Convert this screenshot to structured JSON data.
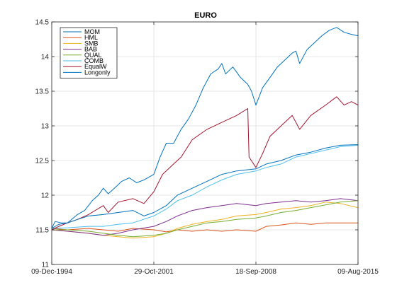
{
  "chart_data": {
    "type": "line",
    "title": "EURO",
    "xlabel": "",
    "ylabel": "",
    "x_start": "09-Dec-1994",
    "x_end": "09-Aug-2015",
    "xlim": [
      "09-Dec-1994",
      "09-Aug-2015"
    ],
    "ylim": [
      11,
      14.5
    ],
    "x_ticks": [
      "09-Dec-1994",
      "29-Oct-2001",
      "18-Sep-2008",
      "09-Aug-2015"
    ],
    "y_ticks": [
      11,
      11.5,
      12,
      12.5,
      13,
      13.5,
      14,
      14.5
    ],
    "grid": true,
    "legend_position": "top-left",
    "series": [
      {
        "name": "MOM",
        "color": "#0072bd",
        "points": [
          [
            "1994-12-09",
            11.52
          ],
          [
            "1995-03-01",
            11.62
          ],
          [
            "1995-08-01",
            11.6
          ],
          [
            "1996-01-01",
            11.6
          ],
          [
            "1996-09-01",
            11.72
          ],
          [
            "1997-03-01",
            11.78
          ],
          [
            "1997-09-01",
            11.92
          ],
          [
            "1998-02-01",
            12.0
          ],
          [
            "1998-06-01",
            12.1
          ],
          [
            "1998-10-01",
            12.02
          ],
          [
            "1999-03-01",
            12.1
          ],
          [
            "1999-09-01",
            12.2
          ],
          [
            "2000-03-01",
            12.25
          ],
          [
            "2000-09-01",
            12.18
          ],
          [
            "2001-03-01",
            12.22
          ],
          [
            "2001-10-29",
            12.3
          ],
          [
            "2002-04-01",
            12.55
          ],
          [
            "2002-09-01",
            12.75
          ],
          [
            "2003-03-01",
            12.75
          ],
          [
            "2003-09-01",
            12.95
          ],
          [
            "2004-03-01",
            13.1
          ],
          [
            "2004-09-01",
            13.3
          ],
          [
            "2005-03-01",
            13.55
          ],
          [
            "2005-09-01",
            13.75
          ],
          [
            "2006-03-01",
            13.82
          ],
          [
            "2006-06-01",
            13.9
          ],
          [
            "2006-09-01",
            13.75
          ],
          [
            "2007-03-01",
            13.85
          ],
          [
            "2007-09-01",
            13.7
          ],
          [
            "2008-03-01",
            13.6
          ],
          [
            "2008-06-01",
            13.5
          ],
          [
            "2008-09-18",
            13.3
          ],
          [
            "2009-03-01",
            13.55
          ],
          [
            "2009-09-01",
            13.7
          ],
          [
            "2010-03-01",
            13.85
          ],
          [
            "2010-09-01",
            13.95
          ],
          [
            "2011-03-01",
            14.05
          ],
          [
            "2011-06-01",
            14.08
          ],
          [
            "2011-09-01",
            13.9
          ],
          [
            "2012-03-01",
            14.1
          ],
          [
            "2012-09-01",
            14.2
          ],
          [
            "2013-03-01",
            14.3
          ],
          [
            "2013-09-01",
            14.38
          ],
          [
            "2014-03-01",
            14.42
          ],
          [
            "2014-09-01",
            14.35
          ],
          [
            "2015-03-01",
            14.32
          ],
          [
            "2015-08-09",
            14.3
          ]
        ]
      },
      {
        "name": "HML",
        "color": "#d95319",
        "points": [
          [
            "1994-12-09",
            11.52
          ],
          [
            "1996-01-01",
            11.5
          ],
          [
            "1997-06-01",
            11.52
          ],
          [
            "1998-06-01",
            11.5
          ],
          [
            "1999-06-01",
            11.48
          ],
          [
            "2000-06-01",
            11.52
          ],
          [
            "2001-10-29",
            11.5
          ],
          [
            "2002-09-01",
            11.47
          ],
          [
            "2003-06-01",
            11.5
          ],
          [
            "2004-06-01",
            11.48
          ],
          [
            "2005-06-01",
            11.5
          ],
          [
            "2006-06-01",
            11.48
          ],
          [
            "2007-06-01",
            11.5
          ],
          [
            "2008-09-18",
            11.48
          ],
          [
            "2009-06-01",
            11.55
          ],
          [
            "2010-06-01",
            11.57
          ],
          [
            "2011-06-01",
            11.6
          ],
          [
            "2012-06-01",
            11.58
          ],
          [
            "2013-06-01",
            11.6
          ],
          [
            "2014-06-01",
            11.6
          ],
          [
            "2015-08-09",
            11.6
          ]
        ]
      },
      {
        "name": "SMB",
        "color": "#edb120",
        "points": [
          [
            "1994-12-09",
            11.5
          ],
          [
            "1996-01-01",
            11.48
          ],
          [
            "1997-06-01",
            11.45
          ],
          [
            "1998-06-01",
            11.42
          ],
          [
            "1999-06-01",
            11.4
          ],
          [
            "2000-06-01",
            11.38
          ],
          [
            "2001-10-29",
            11.4
          ],
          [
            "2002-09-01",
            11.45
          ],
          [
            "2003-06-01",
            11.52
          ],
          [
            "2004-06-01",
            11.58
          ],
          [
            "2005-06-01",
            11.62
          ],
          [
            "2006-06-01",
            11.65
          ],
          [
            "2007-06-01",
            11.7
          ],
          [
            "2008-09-18",
            11.72
          ],
          [
            "2009-06-01",
            11.75
          ],
          [
            "2010-06-01",
            11.8
          ],
          [
            "2011-06-01",
            11.82
          ],
          [
            "2012-06-01",
            11.85
          ],
          [
            "2013-06-01",
            11.9
          ],
          [
            "2014-06-01",
            11.88
          ],
          [
            "2015-08-09",
            11.82
          ]
        ]
      },
      {
        "name": "BAB",
        "color": "#7e2f8e",
        "points": [
          [
            "1994-12-09",
            11.5
          ],
          [
            "1996-01-01",
            11.48
          ],
          [
            "1997-06-01",
            11.45
          ],
          [
            "1998-06-01",
            11.42
          ],
          [
            "1999-06-01",
            11.45
          ],
          [
            "2000-06-01",
            11.5
          ],
          [
            "2001-10-29",
            11.55
          ],
          [
            "2002-09-01",
            11.62
          ],
          [
            "2003-06-01",
            11.7
          ],
          [
            "2004-06-01",
            11.78
          ],
          [
            "2005-06-01",
            11.82
          ],
          [
            "2006-06-01",
            11.85
          ],
          [
            "2007-06-01",
            11.88
          ],
          [
            "2008-09-18",
            11.85
          ],
          [
            "2009-06-01",
            11.88
          ],
          [
            "2010-06-01",
            11.9
          ],
          [
            "2011-06-01",
            11.92
          ],
          [
            "2012-06-01",
            11.9
          ],
          [
            "2013-06-01",
            11.92
          ],
          [
            "2014-06-01",
            11.95
          ],
          [
            "2015-08-09",
            11.92
          ]
        ]
      },
      {
        "name": "QUAL",
        "color": "#77ac30",
        "points": [
          [
            "1994-12-09",
            11.5
          ],
          [
            "1996-01-01",
            11.5
          ],
          [
            "1997-06-01",
            11.48
          ],
          [
            "1998-06-01",
            11.45
          ],
          [
            "1999-06-01",
            11.42
          ],
          [
            "2000-06-01",
            11.4
          ],
          [
            "2001-10-29",
            11.42
          ],
          [
            "2002-09-01",
            11.45
          ],
          [
            "2003-06-01",
            11.5
          ],
          [
            "2004-06-01",
            11.55
          ],
          [
            "2005-06-01",
            11.6
          ],
          [
            "2006-06-01",
            11.62
          ],
          [
            "2007-06-01",
            11.65
          ],
          [
            "2008-09-18",
            11.67
          ],
          [
            "2009-06-01",
            11.7
          ],
          [
            "2010-06-01",
            11.75
          ],
          [
            "2011-06-01",
            11.78
          ],
          [
            "2012-06-01",
            11.82
          ],
          [
            "2013-06-01",
            11.86
          ],
          [
            "2014-06-01",
            11.9
          ],
          [
            "2015-08-09",
            11.92
          ]
        ]
      },
      {
        "name": "COMB",
        "color": "#4dbeee",
        "points": [
          [
            "1994-12-09",
            11.52
          ],
          [
            "1996-01-01",
            11.53
          ],
          [
            "1997-06-01",
            11.55
          ],
          [
            "1998-06-01",
            11.55
          ],
          [
            "1999-06-01",
            11.58
          ],
          [
            "2000-06-01",
            11.6
          ],
          [
            "2001-10-29",
            11.7
          ],
          [
            "2002-09-01",
            11.8
          ],
          [
            "2003-06-01",
            11.92
          ],
          [
            "2004-06-01",
            12.0
          ],
          [
            "2005-06-01",
            12.12
          ],
          [
            "2006-06-01",
            12.22
          ],
          [
            "2007-06-01",
            12.3
          ],
          [
            "2008-09-18",
            12.35
          ],
          [
            "2009-06-01",
            12.4
          ],
          [
            "2010-06-01",
            12.45
          ],
          [
            "2011-06-01",
            12.55
          ],
          [
            "2012-06-01",
            12.6
          ],
          [
            "2013-06-01",
            12.65
          ],
          [
            "2014-06-01",
            12.7
          ],
          [
            "2015-08-09",
            12.72
          ]
        ]
      },
      {
        "name": "EqualW",
        "color": "#a2142f",
        "points": [
          [
            "1994-12-09",
            11.5
          ],
          [
            "1995-06-01",
            11.55
          ],
          [
            "1996-01-01",
            11.6
          ],
          [
            "1996-09-01",
            11.65
          ],
          [
            "1997-06-01",
            11.72
          ],
          [
            "1998-06-01",
            11.85
          ],
          [
            "1998-10-01",
            11.75
          ],
          [
            "1999-06-01",
            11.9
          ],
          [
            "2000-06-01",
            11.95
          ],
          [
            "2001-03-01",
            11.88
          ],
          [
            "2001-10-29",
            12.05
          ],
          [
            "2002-06-01",
            12.3
          ],
          [
            "2003-03-01",
            12.45
          ],
          [
            "2003-09-01",
            12.55
          ],
          [
            "2004-06-01",
            12.8
          ],
          [
            "2005-06-01",
            12.95
          ],
          [
            "2006-06-01",
            13.05
          ],
          [
            "2007-06-01",
            13.15
          ],
          [
            "2008-03-01",
            13.25
          ],
          [
            "2008-04-01",
            12.55
          ],
          [
            "2008-09-18",
            12.4
          ],
          [
            "2009-03-01",
            12.6
          ],
          [
            "2009-09-01",
            12.85
          ],
          [
            "2010-06-01",
            13.0
          ],
          [
            "2011-03-01",
            13.15
          ],
          [
            "2011-09-01",
            12.95
          ],
          [
            "2012-06-01",
            13.15
          ],
          [
            "2013-06-01",
            13.3
          ],
          [
            "2014-03-01",
            13.42
          ],
          [
            "2014-09-01",
            13.3
          ],
          [
            "2015-03-01",
            13.35
          ],
          [
            "2015-08-09",
            13.3
          ]
        ]
      },
      {
        "name": "Longonly",
        "color": "#0072bd",
        "points": [
          [
            "1994-12-09",
            11.52
          ],
          [
            "1995-06-01",
            11.58
          ],
          [
            "1996-01-01",
            11.6
          ],
          [
            "1996-09-01",
            11.65
          ],
          [
            "1997-06-01",
            11.7
          ],
          [
            "1998-06-01",
            11.72
          ],
          [
            "1999-06-01",
            11.75
          ],
          [
            "2000-06-01",
            11.78
          ],
          [
            "2001-03-01",
            11.7
          ],
          [
            "2001-10-29",
            11.75
          ],
          [
            "2002-09-01",
            11.85
          ],
          [
            "2003-06-01",
            12.0
          ],
          [
            "2004-06-01",
            12.1
          ],
          [
            "2005-06-01",
            12.2
          ],
          [
            "2006-06-01",
            12.3
          ],
          [
            "2007-06-01",
            12.35
          ],
          [
            "2008-09-18",
            12.38
          ],
          [
            "2009-06-01",
            12.45
          ],
          [
            "2010-06-01",
            12.5
          ],
          [
            "2011-06-01",
            12.58
          ],
          [
            "2012-06-01",
            12.62
          ],
          [
            "2013-06-01",
            12.68
          ],
          [
            "2014-06-01",
            12.72
          ],
          [
            "2015-08-09",
            12.73
          ]
        ]
      }
    ]
  }
}
